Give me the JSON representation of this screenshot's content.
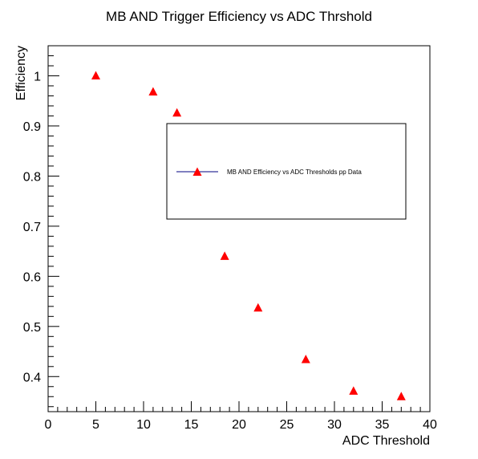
{
  "chart_data": {
    "type": "scatter",
    "title": "MB AND Trigger Efficiency vs ADC Thrshold",
    "xlabel": "ADC Threshold",
    "ylabel": "Efficiency",
    "xlim": [
      0,
      40
    ],
    "ylim": [
      0.33,
      1.06
    ],
    "xticks": [
      0,
      5,
      10,
      15,
      20,
      25,
      30,
      35,
      40
    ],
    "yticks": [
      0.4,
      0.5,
      0.6,
      0.7,
      0.8,
      0.9,
      1
    ],
    "grid": false,
    "legend_position": "upper-right",
    "series": [
      {
        "name": "MB AND Efficiency vs ADC Thresholds pp Data",
        "marker": "triangle-up",
        "marker_color": "#ff0000",
        "line_color": "#000080",
        "x": [
          5,
          11,
          13.5,
          18.5,
          22,
          27,
          32,
          37
        ],
        "y": [
          1.0,
          0.968,
          0.926,
          0.64,
          0.537,
          0.434,
          0.371,
          0.36
        ]
      }
    ]
  }
}
